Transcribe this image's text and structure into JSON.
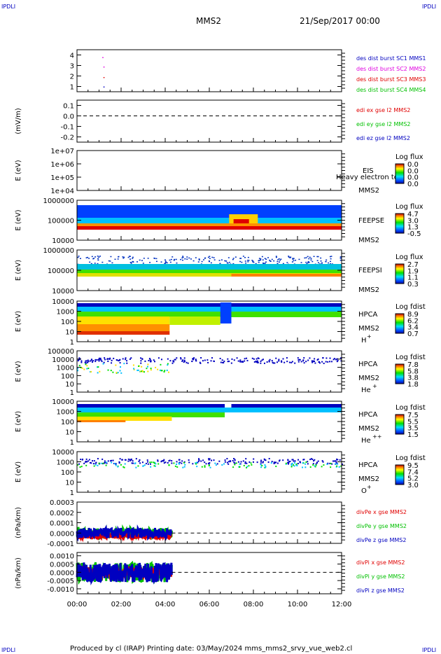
{
  "header": {
    "corner_label": "IPDLI",
    "title": "MMS2",
    "date": "21/Sep/2017 00:00"
  },
  "footer": {
    "text": "Produced by cl (IRAP)   Printing date: 03/May/2024   mms_mms2_srvy_vue_web2.cl"
  },
  "colors": {
    "red": "#e00000",
    "green": "#00c000",
    "blue": "#0000c0",
    "magenta": "#e000e0",
    "navy": "#0000a0"
  },
  "chart_data": [
    {
      "type": "scatter",
      "name": "burst",
      "ylim": [
        0.5,
        4.5
      ],
      "yticks": [
        "1",
        "2",
        "3",
        "4"
      ],
      "ylabel": "",
      "legend": [
        {
          "text": "des dist burst SC1 MMS1",
          "color": "#0000c0"
        },
        {
          "text": "des dist burst SC2 MMS2",
          "color": "#e000e0"
        },
        {
          "text": "des dist burst SC3 MMS3",
          "color": "#e00000"
        },
        {
          "text": "des dist burst SC4 MMS4",
          "color": "#00c000"
        }
      ]
    },
    {
      "type": "line",
      "name": "edi",
      "ylim": [
        -0.25,
        0.15
      ],
      "yticks": [
        "0.1",
        "0.0",
        "-0.1",
        "-0.2"
      ],
      "ylabel": "(mV/m)",
      "legend": [
        {
          "text": "edi ex gse l2 MMS2",
          "color": "#e00000"
        },
        {
          "text": "edi ey gse l2 MMS2",
          "color": "#00c000"
        },
        {
          "text": "edi ez gse l2 MMS2",
          "color": "#0000c0"
        }
      ]
    },
    {
      "type": "heatmap",
      "name": "eis",
      "yticks": [
        "1e+07",
        "1e+06",
        "1e+05",
        "1e+04"
      ],
      "ylabel": "E (eV)",
      "label": "EIS",
      "label2": "MMS2",
      "overlay": "Heavy electron to",
      "cb_title": "Log flux",
      "cb_ticks": [
        "0.0",
        "0.0",
        "0.0",
        "0.0"
      ]
    },
    {
      "type": "heatmap",
      "name": "feepse",
      "yticks": [
        "1000000",
        "100000",
        "10000"
      ],
      "ylabel": "E (eV)",
      "label": "FEEPSE",
      "label2": "MMS2",
      "cb_title": "Log flux",
      "cb_ticks": [
        "4.7",
        "3.0",
        "1.3",
        "-0.5"
      ]
    },
    {
      "type": "heatmap",
      "name": "feepsi",
      "yticks": [
        "1000000",
        "100000",
        "10000"
      ],
      "ylabel": "E (eV)",
      "label": "FEEPSI",
      "label2": "MMS2",
      "cb_title": "Log flux",
      "cb_ticks": [
        "2.7",
        "1.9",
        "1.1",
        "0.3"
      ]
    },
    {
      "type": "heatmap",
      "name": "hpca-h",
      "yticks": [
        "10000",
        "1000",
        "100",
        "10",
        "1"
      ],
      "ylabel": "E (eV)",
      "label": "HPCA",
      "label2": "MMS2",
      "species": "H+",
      "cb_title": "Log fdist",
      "cb_ticks": [
        "8.9",
        "6.2",
        "3.4",
        "0.7"
      ]
    },
    {
      "type": "heatmap",
      "name": "hpca-he",
      "yticks": [
        "100000",
        "10000",
        "1000",
        "100",
        "10",
        "1"
      ],
      "ylabel": "E (eV)",
      "label": "HPCA",
      "label2": "MMS2",
      "species": "He+",
      "cb_title": "Log fdist",
      "cb_ticks": [
        "7.8",
        "5.8",
        "3.8",
        "1.8"
      ]
    },
    {
      "type": "heatmap",
      "name": "hpca-hepp",
      "yticks": [
        "10000",
        "1000",
        "100",
        "10",
        "1"
      ],
      "ylabel": "E (eV)",
      "label": "HPCA",
      "label2": "MMS2",
      "species": "He++",
      "cb_title": "Log fdist",
      "cb_ticks": [
        "7.5",
        "5.5",
        "3.5",
        "1.5"
      ]
    },
    {
      "type": "heatmap",
      "name": "hpca-o",
      "yticks": [
        "10000",
        "1000",
        "100",
        "10",
        "1"
      ],
      "ylabel": "E (eV)",
      "label": "HPCA",
      "label2": "MMS2",
      "species": "O+",
      "cb_title": "Log fdist",
      "cb_ticks": [
        "9.5",
        "7.4",
        "5.2",
        "3.0"
      ]
    },
    {
      "type": "line",
      "name": "divpe",
      "ylim": [
        -0.0001,
        0.0003
      ],
      "yticks": [
        "0.0003",
        "0.0002",
        "0.0001",
        "0.0000",
        "-0.0001"
      ],
      "ylabel": "(nPa/km)",
      "legend": [
        {
          "text": "divPe x gse MMS2",
          "color": "#e00000"
        },
        {
          "text": "divPe y gse MMS2",
          "color": "#00c000"
        },
        {
          "text": "divPe z gse MMS2",
          "color": "#0000c0"
        }
      ]
    },
    {
      "type": "line",
      "name": "divpi",
      "ylim": [
        -0.0013,
        0.0012
      ],
      "yticks": [
        "0.0010",
        "0.0005",
        "0.0000",
        "-0.0005",
        "-0.0010"
      ],
      "ylabel": "(nPa/km)",
      "legend": [
        {
          "text": "divPi x gse MMS2",
          "color": "#e00000"
        },
        {
          "text": "divPi y gse MMS2",
          "color": "#00c000"
        },
        {
          "text": "divPi z gse MMS2",
          "color": "#0000c0"
        }
      ]
    }
  ],
  "x_axis": {
    "ticks": [
      "00:00",
      "02:00",
      "04:00",
      "06:00",
      "08:00",
      "10:00",
      "12:00"
    ],
    "range_hours": [
      0,
      12
    ]
  }
}
